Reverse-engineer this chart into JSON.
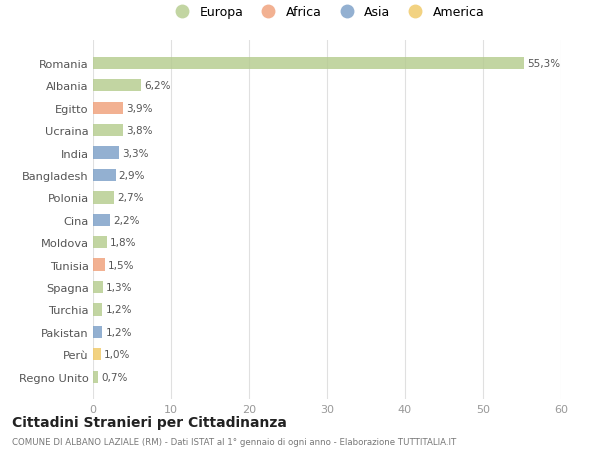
{
  "countries": [
    "Romania",
    "Albania",
    "Egitto",
    "Ucraina",
    "India",
    "Bangladesh",
    "Polonia",
    "Cina",
    "Moldova",
    "Tunisia",
    "Spagna",
    "Turchia",
    "Pakistan",
    "Perù",
    "Regno Unito"
  ],
  "values": [
    55.3,
    6.2,
    3.9,
    3.8,
    3.3,
    2.9,
    2.7,
    2.2,
    1.8,
    1.5,
    1.3,
    1.2,
    1.2,
    1.0,
    0.7
  ],
  "labels": [
    "55,3%",
    "6,2%",
    "3,9%",
    "3,8%",
    "3,3%",
    "2,9%",
    "2,7%",
    "2,2%",
    "1,8%",
    "1,5%",
    "1,3%",
    "1,2%",
    "1,2%",
    "1,0%",
    "0,7%"
  ],
  "continents": [
    "Europa",
    "Europa",
    "Africa",
    "Europa",
    "Asia",
    "Asia",
    "Europa",
    "Asia",
    "Europa",
    "Africa",
    "Europa",
    "Europa",
    "Asia",
    "America",
    "Europa"
  ],
  "colors": {
    "Europa": "#b5cc8e",
    "Africa": "#f0a07a",
    "Asia": "#7b9fc7",
    "America": "#f0c865"
  },
  "xlim": [
    0,
    60
  ],
  "xticks": [
    0,
    10,
    20,
    30,
    40,
    50,
    60
  ],
  "title": "Cittadini Stranieri per Cittadinanza",
  "subtitle": "COMUNE DI ALBANO LAZIALE (RM) - Dati ISTAT al 1° gennaio di ogni anno - Elaborazione TUTTITALIA.IT",
  "background_color": "#ffffff",
  "grid_color": "#e0e0e0",
  "bar_alpha": 0.82,
  "legend_order": [
    "Europa",
    "Africa",
    "Asia",
    "America"
  ]
}
